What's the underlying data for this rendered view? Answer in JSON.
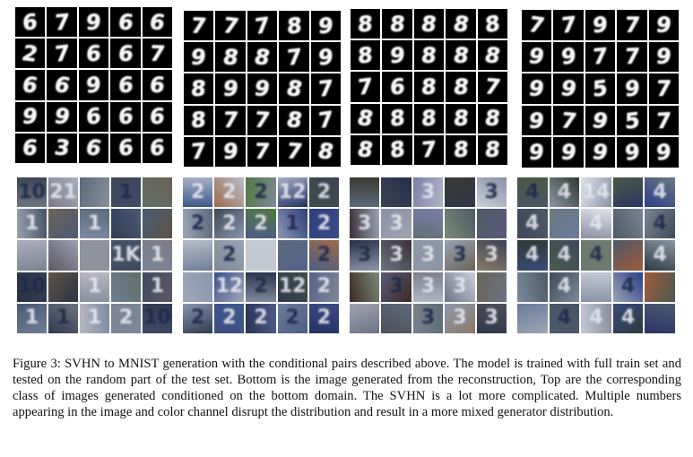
{
  "figure": {
    "caption": "Figure 3: SVHN to MNIST generation with the conditional pairs described above. The model is trained with full train set and tested on the random part of the test set. Bottom is the image generated from the reconstruction, Top are the corresponding class of images generated conditioned on the bottom domain. The SVHN is a lot more complicated. Multiple numbers appearing in the image and color channel disrupt the distribution and result in a more mixed generator distribution.",
    "mnist_panels": [
      [
        "6",
        "7",
        "9",
        "6",
        "6",
        "2",
        "7",
        "6",
        "6",
        "7",
        "6",
        "6",
        "9",
        "6",
        "6",
        "9",
        "9",
        "6",
        "6",
        "6",
        "6",
        "3",
        "6",
        "6",
        "6"
      ],
      [
        "7",
        "7",
        "7",
        "8",
        "9",
        "9",
        "8",
        "8",
        "7",
        "9",
        "8",
        "9",
        "9",
        "8",
        "7",
        "8",
        "7",
        "7",
        "8",
        "7",
        "7",
        "9",
        "7",
        "7",
        "8"
      ],
      [
        "8",
        "8",
        "8",
        "8",
        "8",
        "8",
        "9",
        "8",
        "8",
        "8",
        "7",
        "6",
        "8",
        "8",
        "7",
        "8",
        "8",
        "8",
        "8",
        "8",
        "8",
        "8",
        "7",
        "8",
        "8"
      ],
      [
        "7",
        "7",
        "9",
        "7",
        "9",
        "9",
        "9",
        "7",
        "7",
        "9",
        "9",
        "9",
        "5",
        "9",
        "7",
        "9",
        "7",
        "9",
        "5",
        "7",
        "9",
        "9",
        "9",
        "9",
        "9"
      ]
    ],
    "svhn_panels": [
      [
        "10",
        "21",
        "",
        "1",
        "",
        "1",
        "",
        "1",
        "",
        "",
        "",
        "",
        "",
        "1K",
        "1",
        "10",
        "",
        "1",
        "",
        "1",
        "1",
        "1",
        "1",
        "2",
        "10"
      ],
      [
        "2",
        "2",
        "2",
        "12",
        "2",
        "2",
        "2",
        "2",
        "1",
        "2",
        "",
        "2",
        "",
        "",
        "2",
        "",
        "12",
        "2",
        "12",
        "2",
        "2",
        "2",
        "2",
        "2",
        "2"
      ],
      [
        "",
        "",
        "3",
        "",
        "3",
        "3",
        "3",
        "",
        "",
        "",
        "3",
        "3",
        "3",
        "3",
        "3",
        "",
        "3",
        "3",
        "3",
        "",
        "",
        "",
        "3",
        "3",
        "3"
      ],
      [
        "4",
        "4",
        "14",
        "",
        "4",
        "4",
        "",
        "4",
        "",
        "4",
        "4",
        "4",
        "4",
        "",
        "4",
        "",
        "4",
        "",
        "4",
        "",
        "",
        "4",
        "4",
        "4",
        ""
      ]
    ]
  }
}
